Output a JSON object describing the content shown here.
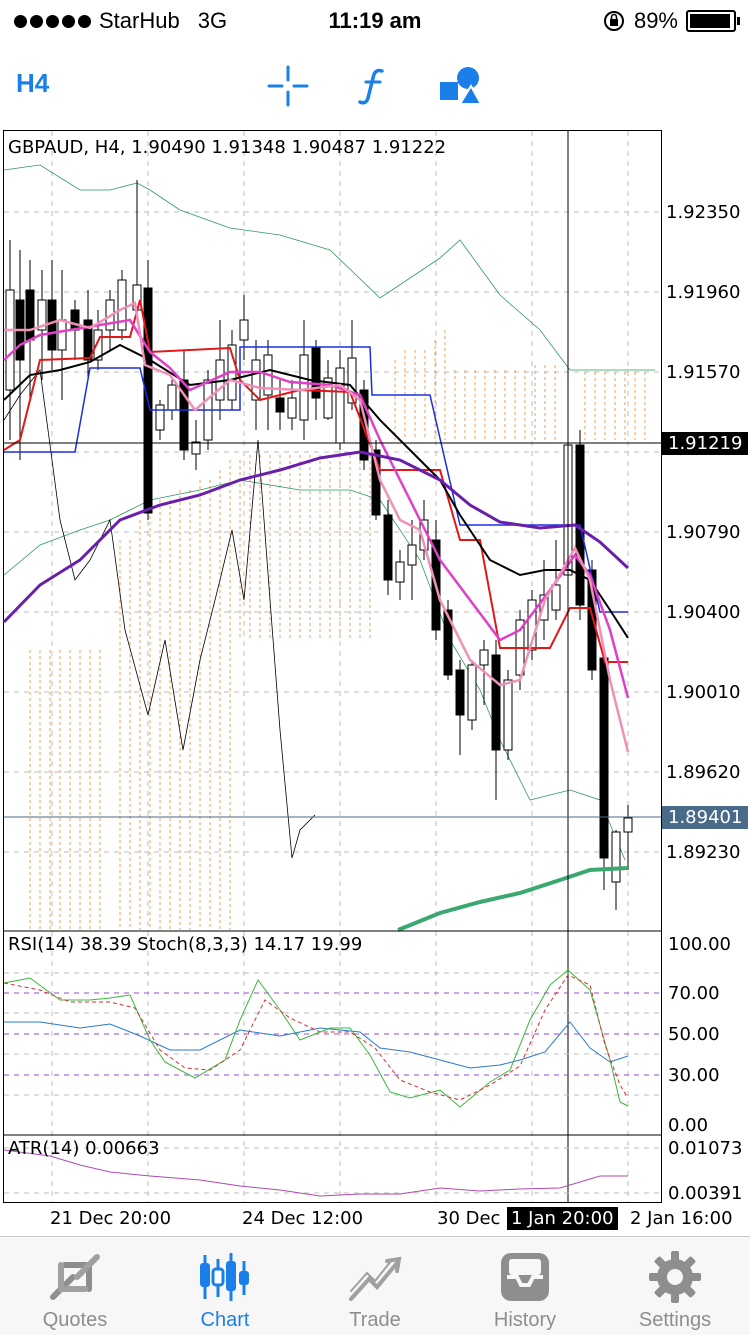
{
  "status_bar": {
    "carrier": "StarHub",
    "network": "3G",
    "time": "11:19 am",
    "battery": "89%"
  },
  "toolbar": {
    "timeframe": "H4"
  },
  "chart": {
    "header": "GBPAUD, H4, 1.90490 1.91348 1.90487 1.91222",
    "price_ticks": [
      "1.92350",
      "1.91960",
      "1.91570",
      "1.90790",
      "1.90400",
      "1.90010",
      "1.89620",
      "1.89230"
    ],
    "crosshair_price": "1.91219",
    "current_price": "1.89401",
    "indicator1_header": "RSI(14) 38.39 Stoch(8,3,3) 14.17 19.99",
    "indicator1_ticks": [
      "100.00",
      "70.00",
      "50.00",
      "30.00",
      "0.00"
    ],
    "indicator2_header": "ATR(14) 0.00663",
    "indicator2_ticks": [
      "0.01073",
      "0.00391"
    ],
    "time_ticks": [
      "21 Dec 20:00",
      "24 Dec 12:00",
      "30 Dec"
    ],
    "crosshair_time": "1 Jan 20:00",
    "time_tick_last": "2 Jan 16:00"
  },
  "tabs": [
    {
      "label": "Quotes",
      "icon": "quotes-icon"
    },
    {
      "label": "Chart",
      "icon": "chart-icon"
    },
    {
      "label": "Trade",
      "icon": "trade-icon"
    },
    {
      "label": "History",
      "icon": "history-icon"
    },
    {
      "label": "Settings",
      "icon": "settings-icon"
    }
  ],
  "colors": {
    "accent": "#1a7fe8",
    "inactive": "#8e8e8e"
  }
}
